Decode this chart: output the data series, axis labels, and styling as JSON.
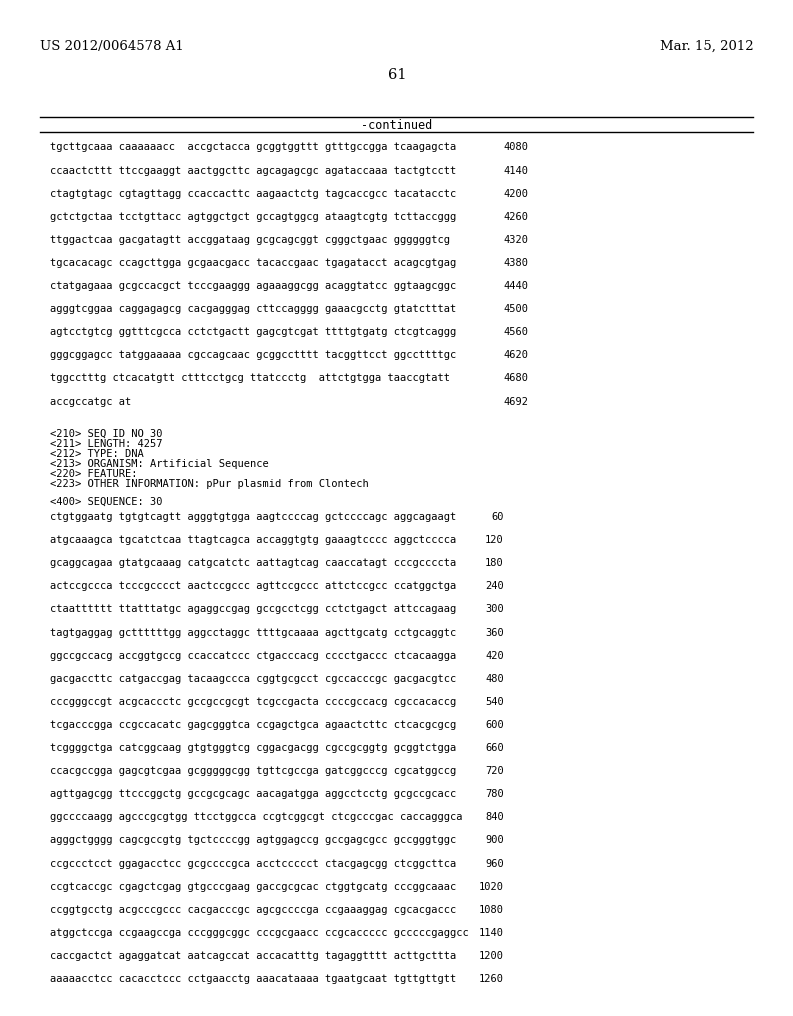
{
  "header_left": "US 2012/0064578 A1",
  "header_right": "Mar. 15, 2012",
  "page_number": "61",
  "continued_label": "-continued",
  "background_color": "#ffffff",
  "text_color": "#000000",
  "font_size": 7.5,
  "header_font_size": 9.5,
  "page_num_font_size": 10.5,
  "continued_font_size": 8.5,
  "sequence_lines_top": [
    {
      "seq": "tgcttgcaaa caaaaaacc  accgctacca gcggtggttt gtttgccgga tcaagagcta",
      "num": "4080"
    },
    {
      "seq": "ccaactcttt ttccgaaggt aactggcttc agcagagcgc agataccaaa tactgtcctt",
      "num": "4140"
    },
    {
      "seq": "ctagtgtagc cgtagttagg ccaccacttc aagaactctg tagcaccgcc tacatacctc",
      "num": "4200"
    },
    {
      "seq": "gctctgctaa tcctgttacc agtggctgct gccagtggcg ataagtcgtg tcttaccggg",
      "num": "4260"
    },
    {
      "seq": "ttggactcaa gacgatagtt accggataag gcgcagcggt cgggctgaac ggggggtcg",
      "num": "4320"
    },
    {
      "seq": "tgcacacagc ccagcttgga gcgaacgacc tacaccgaac tgagatacct acagcgtgag",
      "num": "4380"
    },
    {
      "seq": "ctatgagaaa gcgccacgct tcccgaaggg agaaaggcgg acaggtatcc ggtaagcggc",
      "num": "4440"
    },
    {
      "seq": "agggtcggaa caggagagcg cacgagggag cttccagggg gaaacgcctg gtatctttat",
      "num": "4500"
    },
    {
      "seq": "agtcctgtcg ggtttcgcca cctctgactt gagcgtcgat ttttgtgatg ctcgtcaggg",
      "num": "4560"
    },
    {
      "seq": "gggcggagcc tatggaaaaa cgccagcaac gcggcctttt tacggttcct ggccttttgc",
      "num": "4620"
    },
    {
      "seq": "tggcctttg ctcacatgtt ctttcctgcg ttatccctg  attctgtgga taaccgtatt",
      "num": "4680"
    },
    {
      "seq": "accgccatgc at",
      "num": "4692"
    }
  ],
  "metadata_lines": [
    "<210> SEQ ID NO 30",
    "<211> LENGTH: 4257",
    "<212> TYPE: DNA",
    "<213> ORGANISM: Artificial Sequence",
    "<220> FEATURE:",
    "<223> OTHER INFORMATION: pPur plasmid from Clontech"
  ],
  "sequence_label": "<400> SEQUENCE: 30",
  "sequence_lines_bottom": [
    {
      "seq": "ctgtggaatg tgtgtcagtt agggtgtgga aagtccccag gctccccagc aggcagaagt",
      "num": "60"
    },
    {
      "seq": "atgcaaagca tgcatctcaa ttagtcagca accaggtgtg gaaagtcccc aggctcccca",
      "num": "120"
    },
    {
      "seq": "gcaggcagaa gtatgcaaag catgcatctc aattagtcag caaccatagt cccgccccta",
      "num": "180"
    },
    {
      "seq": "actccgccca tcccgcccct aactccgccc agttccgccc attctccgcc ccatggctga",
      "num": "240"
    },
    {
      "seq": "ctaatttttt ttatttatgc agaggccgag gccgcctcgg cctctgagct attccagaag",
      "num": "300"
    },
    {
      "seq": "tagtgaggag gcttttttgg aggcctaggc ttttgcaaaa agcttgcatg cctgcaggtc",
      "num": "360"
    },
    {
      "seq": "ggccgccacg accggtgccg ccaccatccc ctgacccacg cccctgaccc ctcacaagga",
      "num": "420"
    },
    {
      "seq": "gacgaccttc catgaccgag tacaagccca cggtgcgcct cgccacccgc gacgacgtcc",
      "num": "480"
    },
    {
      "seq": "cccgggccgt acgcaccctc gccgccgcgt tcgccgacta ccccgccacg cgccacaccg",
      "num": "540"
    },
    {
      "seq": "tcgacccgga ccgccacatc gagcgggtca ccgagctgca agaactcttc ctcacgcgcg",
      "num": "600"
    },
    {
      "seq": "tcggggctga catcggcaag gtgtgggtcg cggacgacgg cgccgcggtg gcggtctgga",
      "num": "660"
    },
    {
      "seq": "ccacgccgga gagcgtcgaa gcgggggcgg tgttcgccga gatcggcccg cgcatggccg",
      "num": "720"
    },
    {
      "seq": "agttgagcgg ttcccggctg gccgcgcagc aacagatgga aggcctcctg gcgccgcacc",
      "num": "780"
    },
    {
      "seq": "ggccccaagg agcccgcgtgg ttcctggcca ccgtcggcgt ctcgcccgac caccagggca",
      "num": "840"
    },
    {
      "seq": "agggctgggg cagcgccgtg tgctccccgg agtggagccg gccgagcgcc gccgggtggc",
      "num": "900"
    },
    {
      "seq": "ccgccctcct ggagacctcc gcgccccgca acctccccct ctacgagcgg ctcggcttca",
      "num": "960"
    },
    {
      "seq": "ccgtcaccgc cgagctcgag gtgcccgaag gaccgcgcac ctggtgcatg cccggcaaac",
      "num": "1020"
    },
    {
      "seq": "ccggtgcctg acgcccgccc cacgacccgc agcgccccga ccgaaaggag cgcacgaccc",
      "num": "1080"
    },
    {
      "seq": "atggctccga ccgaagccga cccgggcggc cccgcgaacc ccgcaccccc gcccccgaggcc",
      "num": "1140"
    },
    {
      "seq": "caccgactct agaggatcat aatcagccat accacatttg tagaggtttt acttgcttta",
      "num": "1200"
    },
    {
      "seq": "aaaaacctcc cacacctccc cctgaacctg aaacataaaa tgaatgcaat tgttgttgtt",
      "num": "1260"
    }
  ]
}
